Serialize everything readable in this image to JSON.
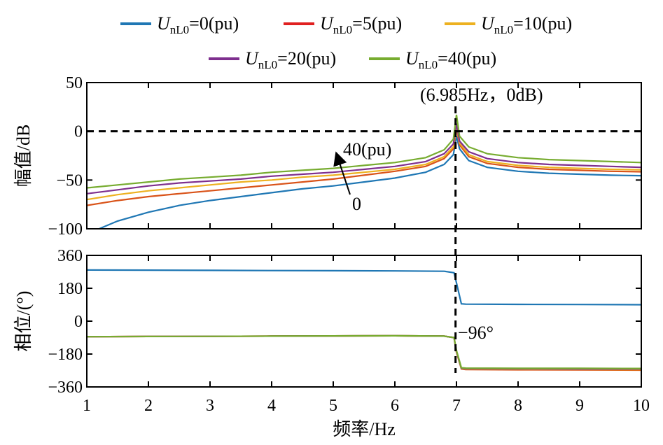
{
  "chart_data": [
    {
      "type": "line",
      "title": "",
      "xlabel": "频率/Hz",
      "ylabel": "幅值/dB",
      "xlim": [
        1,
        10
      ],
      "ylim": [
        -100,
        50
      ],
      "xticks": [
        "1",
        "2",
        "3",
        "4",
        "5",
        "6",
        "7",
        "8",
        "9",
        "10"
      ],
      "yticks": [
        "50",
        "0",
        "−50",
        "−100"
      ],
      "grid": false,
      "reference_lines": {
        "y": 0,
        "x": 6.985,
        "style": "dashed"
      },
      "annotations": {
        "peak": "(6.985Hz，0dB)",
        "arrow_top": "40(pu)",
        "arrow_bottom": "0"
      },
      "series": [
        {
          "name": "U_nL0=0(pu)",
          "color": "#1f77b4",
          "x": [
            1.2,
            1.5,
            2,
            2.5,
            3,
            3.5,
            4,
            4.5,
            5,
            5.5,
            6,
            6.5,
            6.8,
            6.95,
            7.0,
            7.05,
            7.2,
            7.5,
            8,
            8.5,
            9,
            9.5,
            10
          ],
          "values": [
            -100,
            -92,
            -83,
            -76,
            -71,
            -67,
            -63,
            -59,
            -56,
            -52,
            -48,
            -42,
            -34,
            -24,
            -5,
            -18,
            -30,
            -37,
            -41,
            -43,
            -44,
            -45,
            -45.5
          ]
        },
        {
          "name": "U_nL0=5(pu)",
          "color": "#d95319",
          "x": [
            1,
            1.5,
            2,
            2.5,
            3,
            3.5,
            4,
            4.5,
            5,
            5.5,
            6,
            6.5,
            6.8,
            6.95,
            7.0,
            7.05,
            7.2,
            7.5,
            8,
            8.5,
            9,
            9.5,
            10
          ],
          "values": [
            -76,
            -71,
            -67,
            -64,
            -61,
            -58,
            -55,
            -52,
            -49,
            -45,
            -41,
            -36,
            -28,
            -18,
            4,
            -14,
            -26,
            -33,
            -37,
            -39,
            -40,
            -41,
            -41.5
          ]
        },
        {
          "name": "U_nL0=10(pu)",
          "color": "#edb120",
          "x": [
            1,
            1.5,
            2,
            2.5,
            3,
            3.5,
            4,
            4.5,
            5,
            5.5,
            6,
            6.5,
            6.8,
            6.95,
            7.0,
            7.05,
            7.2,
            7.5,
            8,
            8.5,
            9,
            9.5,
            10
          ],
          "values": [
            -70,
            -65,
            -61,
            -58,
            -55,
            -52,
            -50,
            -47,
            -45,
            -42,
            -39,
            -34,
            -26,
            -16,
            6,
            -12,
            -24,
            -31,
            -35,
            -37,
            -38,
            -39,
            -39.5
          ]
        },
        {
          "name": "U_nL0=20(pu)",
          "color": "#7e2f8e",
          "x": [
            1,
            1.5,
            2,
            2.5,
            3,
            3.5,
            4,
            4.5,
            5,
            5.5,
            6,
            6.5,
            6.8,
            6.95,
            7.0,
            7.05,
            7.2,
            7.5,
            8,
            8.5,
            9,
            9.5,
            10
          ],
          "values": [
            -64,
            -60,
            -56,
            -53,
            -51,
            -49,
            -46,
            -44,
            -42,
            -39,
            -36,
            -31,
            -23,
            -13,
            8,
            -10,
            -21,
            -28,
            -32,
            -34,
            -35,
            -36,
            -37
          ]
        },
        {
          "name": "U_nL0=40(pu)",
          "color": "#77ac30",
          "x": [
            1,
            1.5,
            2,
            2.5,
            3,
            3.5,
            4,
            4.5,
            5,
            5.5,
            6,
            6.5,
            6.8,
            6.95,
            7.0,
            7.05,
            7.2,
            7.5,
            8,
            8.5,
            9,
            9.5,
            10
          ],
          "values": [
            -58,
            -55,
            -52,
            -49,
            -47,
            -45,
            -42,
            -40,
            -38,
            -35,
            -32,
            -27,
            -19,
            -8,
            17,
            -5,
            -16,
            -23,
            -27,
            -29,
            -30,
            -31,
            -32
          ]
        }
      ]
    },
    {
      "type": "line",
      "title": "",
      "xlabel": "频率/Hz",
      "ylabel": "相位/(°)",
      "xlim": [
        1,
        10
      ],
      "ylim": [
        -360,
        360
      ],
      "xticks": [
        "1",
        "2",
        "3",
        "4",
        "5",
        "6",
        "7",
        "8",
        "9",
        "10"
      ],
      "yticks": [
        "360",
        "180",
        "0",
        "−180",
        "−360"
      ],
      "grid": false,
      "reference_lines": {
        "x": 6.985,
        "style": "dashed"
      },
      "annotations": {
        "phase": "−96°"
      },
      "series": [
        {
          "name": "U_nL0=0(pu)",
          "color": "#1f77b4",
          "x": [
            1,
            2,
            3,
            4,
            5,
            6,
            6.8,
            6.96,
            7.0,
            7.08,
            7.15,
            8,
            9,
            10
          ],
          "values": [
            280,
            279,
            278,
            277,
            276,
            275,
            273,
            265,
            210,
            95,
            93,
            92,
            91,
            90
          ]
        },
        {
          "name": "U_nL0=5(pu)",
          "color": "#d95319",
          "x": [
            1,
            2,
            3,
            4,
            5,
            6,
            6.8,
            6.96,
            7.0,
            7.08,
            7.15,
            8,
            9,
            10
          ],
          "values": [
            -85,
            -84,
            -83,
            -82,
            -81,
            -80,
            -82,
            -90,
            -170,
            -262,
            -265,
            -266,
            -267,
            -268
          ]
        },
        {
          "name": "U_nL0=10(pu)",
          "color": "#edb120",
          "x": [
            1,
            2,
            3,
            4,
            5,
            6,
            6.8,
            6.96,
            7.0,
            7.08,
            7.15,
            8,
            9,
            10
          ],
          "values": [
            -85,
            -84,
            -83,
            -82,
            -81,
            -80,
            -82,
            -90,
            -168,
            -260,
            -262,
            -263,
            -264,
            -265
          ]
        },
        {
          "name": "U_nL0=20(pu)",
          "color": "#7e2f8e",
          "x": [
            1,
            2,
            3,
            4,
            5,
            6,
            6.8,
            6.96,
            7.0,
            7.08,
            7.15,
            8,
            9,
            10
          ],
          "values": [
            -85,
            -84,
            -83,
            -82,
            -81,
            -80,
            -82,
            -90,
            -165,
            -258,
            -260,
            -261,
            -262,
            -262
          ]
        },
        {
          "name": "U_nL0=40(pu)",
          "color": "#77ac30",
          "x": [
            1,
            2,
            3,
            4,
            5,
            6,
            6.8,
            6.96,
            7.0,
            7.08,
            7.15,
            8,
            9,
            10
          ],
          "values": [
            -85,
            -84,
            -83,
            -82,
            -81,
            -80,
            -82,
            -90,
            -160,
            -255,
            -257,
            -258,
            -258,
            -259
          ]
        }
      ]
    }
  ],
  "legend": {
    "items": [
      {
        "var": "U",
        "sub": "nL0",
        "rest": "=0(pu)",
        "color": "#1f77b4"
      },
      {
        "var": "U",
        "sub": "nL0",
        "rest": "=5(pu)",
        "color": "#e02020"
      },
      {
        "var": "U",
        "sub": "nL0",
        "rest": "=10(pu)",
        "color": "#edb120"
      },
      {
        "var": "U",
        "sub": "nL0",
        "rest": "=20(pu)",
        "color": "#7e2f8e"
      },
      {
        "var": "U",
        "sub": "nL0",
        "rest": "=40(pu)",
        "color": "#77ac30"
      }
    ]
  }
}
